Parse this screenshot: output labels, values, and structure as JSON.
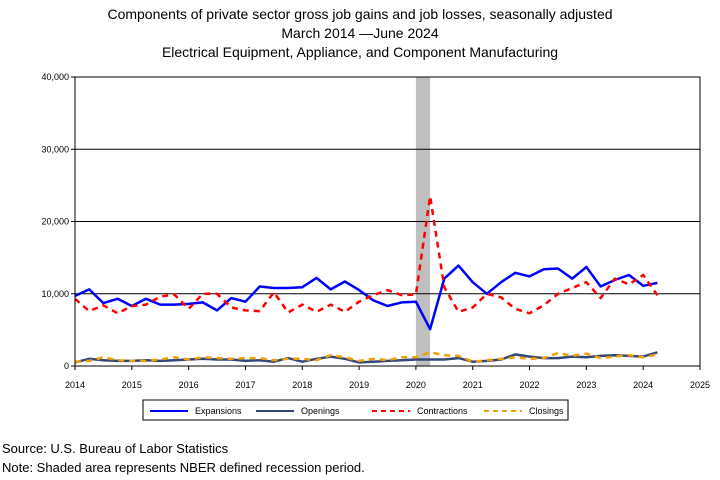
{
  "chart_data": {
    "type": "line",
    "title": "Components of private sector gross job gains and job losses, seasonally adjusted",
    "subtitle": "March 2014 —June 2024",
    "industry": "Electrical Equipment, Appliance, and Component Manufacturing",
    "ylim": [
      0,
      40000
    ],
    "yticks": [
      "0",
      "10,000",
      "20,000",
      "30,000",
      "40,000"
    ],
    "xlim": [
      2014,
      2025
    ],
    "xticks": [
      "2014",
      "2015",
      "2016",
      "2017",
      "2018",
      "2019",
      "2020",
      "2021",
      "2022",
      "2023",
      "2024",
      "2025"
    ],
    "grid": "horizontal",
    "legend_position": "bottom",
    "recession": {
      "start": 2020.0,
      "end": 2020.25
    },
    "x": [
      2014.0,
      2014.25,
      2014.5,
      2014.75,
      2015.0,
      2015.25,
      2015.5,
      2015.75,
      2016.0,
      2016.25,
      2016.5,
      2016.75,
      2017.0,
      2017.25,
      2017.5,
      2017.75,
      2018.0,
      2018.25,
      2018.5,
      2018.75,
      2019.0,
      2019.25,
      2019.5,
      2019.75,
      2020.0,
      2020.25,
      2020.5,
      2020.75,
      2021.0,
      2021.25,
      2021.5,
      2021.75,
      2022.0,
      2022.25,
      2022.5,
      2022.75,
      2023.0,
      2023.25,
      2023.5,
      2023.75,
      2024.0,
      2024.25
    ],
    "series": [
      {
        "name": "Expansions",
        "color": "#0000ff",
        "width": 2.5,
        "dash": "",
        "values": [
          9700,
          10600,
          8700,
          9300,
          8300,
          9300,
          8500,
          8500,
          8600,
          8800,
          7700,
          9400,
          8900,
          11000,
          10800,
          10800,
          10900,
          12200,
          10600,
          11700,
          10500,
          9100,
          8300,
          8800,
          8900,
          5100,
          12100,
          13900,
          11600,
          10000,
          11600,
          12900,
          12400,
          13400,
          13500,
          12100,
          13700,
          11000,
          11900,
          12600,
          11100,
          11500
        ]
      },
      {
        "name": "Openings",
        "color": "#33477a",
        "width": 2.5,
        "dash": "",
        "values": [
          500,
          1000,
          800,
          700,
          700,
          800,
          700,
          800,
          900,
          1000,
          900,
          900,
          700,
          800,
          600,
          1100,
          600,
          1000,
          1300,
          1000,
          500,
          600,
          700,
          800,
          900,
          900,
          900,
          1100,
          600,
          700,
          900,
          1600,
          1300,
          1100,
          1100,
          1300,
          1200,
          1400,
          1500,
          1400,
          1300,
          1900
        ]
      },
      {
        "name": "Contractions",
        "color": "#ff0000",
        "width": 2.5,
        "dash": "6,5",
        "values": [
          9300,
          7600,
          8400,
          7300,
          8300,
          8500,
          9600,
          9900,
          7900,
          10000,
          10000,
          8100,
          7700,
          7600,
          10200,
          7400,
          8500,
          7500,
          8500,
          7500,
          8900,
          9800,
          10500,
          9800,
          9900,
          23500,
          10900,
          7500,
          8100,
          10000,
          9500,
          7900,
          7300,
          8400,
          10000,
          10800,
          11600,
          9400,
          12100,
          11300,
          12600,
          9800
        ]
      },
      {
        "name": "Closings",
        "color": "#f0a000",
        "width": 2.5,
        "dash": "6,5",
        "values": [
          600,
          700,
          1200,
          800,
          700,
          700,
          900,
          1200,
          900,
          1200,
          1100,
          1000,
          1100,
          1100,
          800,
          1000,
          1000,
          800,
          1500,
          1200,
          700,
          1000,
          800,
          1200,
          1200,
          1900,
          1500,
          1400,
          600,
          800,
          1000,
          1200,
          1000,
          1100,
          1800,
          1400,
          1700,
          1100,
          1300,
          1500,
          1200,
          1600
        ]
      }
    ]
  },
  "footer": {
    "source": "Source: U.S. Bureau of Labor Statistics",
    "note": "Note: Shaded area represents NBER defined recession period."
  }
}
